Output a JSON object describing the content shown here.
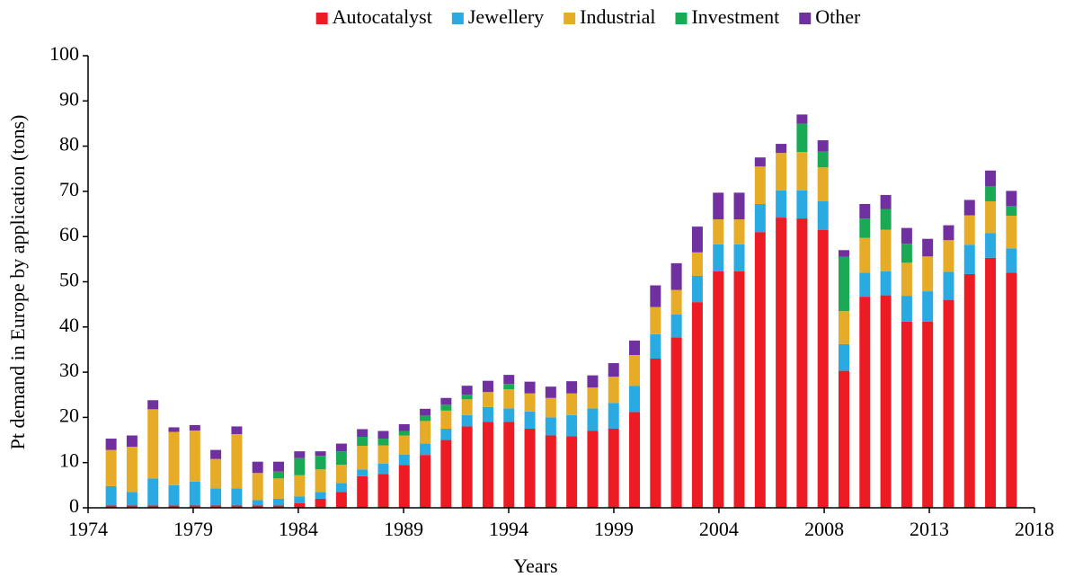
{
  "chart_data": {
    "type": "stacked_bar",
    "x_label": "Years",
    "y_label": "Pt demand in Europe by application (tons)",
    "x": [
      1974,
      1975,
      1976,
      1977,
      1978,
      1979,
      1980,
      1981,
      1982,
      1983,
      1984,
      1985,
      1986,
      1987,
      1988,
      1989,
      1990,
      1991,
      1992,
      1993,
      1994,
      1995,
      1996,
      1997,
      1998,
      1999,
      2000,
      2001,
      2002,
      2003,
      2004,
      2005,
      2006,
      2007,
      2008,
      2009,
      2010,
      2011,
      2012,
      2013,
      2014,
      2015,
      2016,
      2017
    ],
    "series": [
      {
        "name": "Autocatalyst",
        "color": "#ed1c24",
        "values": [
          0.5,
          0.5,
          0.5,
          0.5,
          0.5,
          0.5,
          0.5,
          0.5,
          0.5,
          1,
          2,
          3.5,
          7,
          7.5,
          9.5,
          11.7,
          15,
          18,
          19,
          19,
          17.5,
          16,
          15.8,
          17,
          17.5,
          21.2,
          33,
          37.7,
          45.5,
          52.3,
          52.3,
          61,
          64.2,
          64,
          61.5,
          30.3,
          46.7,
          47,
          41.2,
          41.2,
          46,
          51.7,
          55.3,
          52
        ]
      },
      {
        "name": "Jewellery",
        "color": "#29abe2",
        "values": [
          4.3,
          3,
          6,
          4.5,
          5.3,
          3.8,
          3.8,
          1.2,
          1.5,
          1.5,
          1.5,
          2,
          1.5,
          2.3,
          2.3,
          2.5,
          2.5,
          2.5,
          3.3,
          3,
          3.8,
          4,
          4.7,
          5,
          5.7,
          5.8,
          5.4,
          5.1,
          5.8,
          6,
          6,
          6.2,
          6,
          6.2,
          6.3,
          5.9,
          5.3,
          5.3,
          5.7,
          6.7,
          6.2,
          6.5,
          5.5,
          5.4
        ]
      },
      {
        "name": "Industrial",
        "color": "#e6ac27",
        "values": [
          8,
          10,
          15.3,
          11.8,
          11.3,
          6.5,
          12,
          6,
          4.5,
          4.7,
          5,
          4,
          5.2,
          4,
          4.2,
          5,
          4,
          3.5,
          3.3,
          4.2,
          4,
          4.3,
          4.8,
          4.6,
          5.8,
          6.8,
          6,
          5.4,
          5.2,
          5.5,
          5.5,
          8.3,
          8.3,
          8.5,
          7.5,
          7.3,
          7.7,
          9.2,
          7.3,
          7.7,
          7,
          6.5,
          7,
          7.2
        ]
      },
      {
        "name": "Investment",
        "color": "#1aaa55",
        "values": [
          0,
          0,
          0,
          0,
          0,
          0,
          0,
          0,
          1.5,
          3.8,
          3,
          3,
          2,
          1.5,
          1,
          1.2,
          1.3,
          1,
          0,
          1.2,
          0,
          0,
          0,
          0,
          0,
          0,
          0,
          0,
          0,
          0,
          0,
          0,
          0,
          6.3,
          3.5,
          12,
          4.3,
          4.6,
          4.2,
          0,
          0,
          0,
          3.3,
          2.2
        ]
      },
      {
        "name": "Other",
        "color": "#7030a0",
        "values": [
          2.5,
          2.5,
          2,
          1,
          1.2,
          2,
          1.7,
          2.5,
          2.2,
          1.5,
          1,
          1.7,
          1.7,
          1.7,
          1.5,
          1.5,
          1.5,
          2,
          2.5,
          2,
          2.6,
          2.5,
          2.7,
          2.7,
          3,
          3.2,
          4.8,
          5.9,
          5.7,
          5.9,
          5.9,
          2,
          2,
          2,
          2.5,
          1.5,
          3.2,
          3.1,
          3.5,
          3.9,
          3.3,
          3.4,
          3.5,
          3.3
        ]
      }
    ],
    "xlim": [
      1972.9,
      2018.1
    ],
    "xticks": [
      {
        "value": 1972.9,
        "label": "1974"
      },
      {
        "value": 1977.92,
        "label": "1979"
      },
      {
        "value": 1982.94,
        "label": "1984"
      },
      {
        "value": 1987.97,
        "label": "1989"
      },
      {
        "value": 1992.99,
        "label": "1994"
      },
      {
        "value": 1998.01,
        "label": "1999"
      },
      {
        "value": 2003.03,
        "label": "2004"
      },
      {
        "value": 2008.06,
        "label": "2008"
      },
      {
        "value": 2013.08,
        "label": "2013"
      },
      {
        "value": 2018.1,
        "label": "2018"
      }
    ],
    "ylim": [
      0,
      100
    ],
    "yticks": [
      0,
      10,
      20,
      30,
      40,
      50,
      60,
      70,
      80,
      90,
      100
    ],
    "legend": "top"
  }
}
